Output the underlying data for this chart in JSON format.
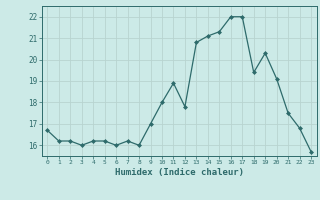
{
  "x": [
    0,
    1,
    2,
    3,
    4,
    5,
    6,
    7,
    8,
    9,
    10,
    11,
    12,
    13,
    14,
    15,
    16,
    17,
    18,
    19,
    20,
    21,
    22,
    23
  ],
  "y": [
    16.7,
    16.2,
    16.2,
    16.0,
    16.2,
    16.2,
    16.0,
    16.2,
    16.0,
    17.0,
    18.0,
    18.9,
    17.8,
    20.8,
    21.1,
    21.3,
    22.0,
    22.0,
    19.4,
    20.3,
    19.1,
    17.5,
    16.8,
    15.7
  ],
  "line_color": "#2e6b6b",
  "marker": "D",
  "marker_size": 2,
  "bg_color": "#cceae7",
  "grid_color": "#b8d4d0",
  "xlabel": "Humidex (Indice chaleur)",
  "xlim": [
    -0.5,
    23.5
  ],
  "ylim": [
    15.5,
    22.5
  ],
  "yticks": [
    16,
    17,
    18,
    19,
    20,
    21,
    22
  ],
  "xticks": [
    0,
    1,
    2,
    3,
    4,
    5,
    6,
    7,
    8,
    9,
    10,
    11,
    12,
    13,
    14,
    15,
    16,
    17,
    18,
    19,
    20,
    21,
    22,
    23
  ]
}
